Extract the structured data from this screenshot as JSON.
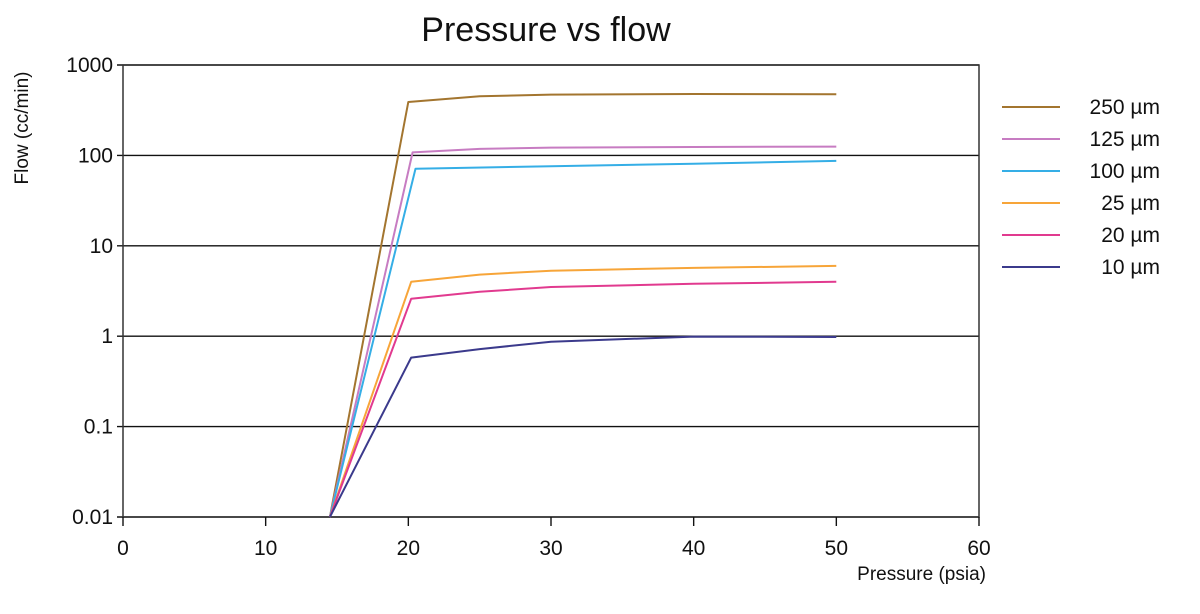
{
  "chart_data": {
    "type": "line",
    "title": "Pressure vs flow",
    "xlabel": "Pressure (psia)",
    "ylabel": "Flow (cc/min)",
    "xlim": [
      0,
      60
    ],
    "ylim": [
      0.01,
      1000
    ],
    "yscale": "log",
    "x_ticks": [
      "0",
      "10",
      "20",
      "30",
      "40",
      "50",
      "60"
    ],
    "y_ticks": [
      "0.01",
      "0.1",
      "1",
      "10",
      "100",
      "1000"
    ],
    "grid": "horizontal",
    "legend_position": "right",
    "series": [
      {
        "name": "250 µm",
        "color": "#a3752f",
        "points": [
          [
            14.5,
            0.01
          ],
          [
            20,
            390
          ],
          [
            25,
            450
          ],
          [
            30,
            470
          ],
          [
            40,
            478
          ],
          [
            50,
            475
          ]
        ]
      },
      {
        "name": "125 µm",
        "color": "#c77cc2",
        "points": [
          [
            14.5,
            0.01
          ],
          [
            20.3,
            108
          ],
          [
            25,
            118
          ],
          [
            30,
            122
          ],
          [
            40,
            124
          ],
          [
            50,
            125
          ]
        ]
      },
      {
        "name": "100 µm",
        "color": "#35aee6",
        "points": [
          [
            14.5,
            0.01
          ],
          [
            20.5,
            71
          ],
          [
            30,
            76
          ],
          [
            40,
            81
          ],
          [
            50,
            87
          ]
        ]
      },
      {
        "name": "25 µm",
        "color": "#f7a539",
        "points": [
          [
            14.5,
            0.01
          ],
          [
            20.2,
            4.0
          ],
          [
            25,
            4.8
          ],
          [
            30,
            5.3
          ],
          [
            40,
            5.7
          ],
          [
            50,
            6.0
          ]
        ]
      },
      {
        "name": "20 µm",
        "color": "#e13a8f",
        "points": [
          [
            14.5,
            0.01
          ],
          [
            20.2,
            2.6
          ],
          [
            25,
            3.1
          ],
          [
            30,
            3.5
          ],
          [
            40,
            3.8
          ],
          [
            50,
            4.0
          ]
        ]
      },
      {
        "name": "10 µm",
        "color": "#3b3a8c",
        "points": [
          [
            14.5,
            0.01
          ],
          [
            20.2,
            0.58
          ],
          [
            25,
            0.72
          ],
          [
            30,
            0.87
          ],
          [
            40,
            0.99
          ],
          [
            50,
            0.98
          ]
        ]
      }
    ]
  }
}
